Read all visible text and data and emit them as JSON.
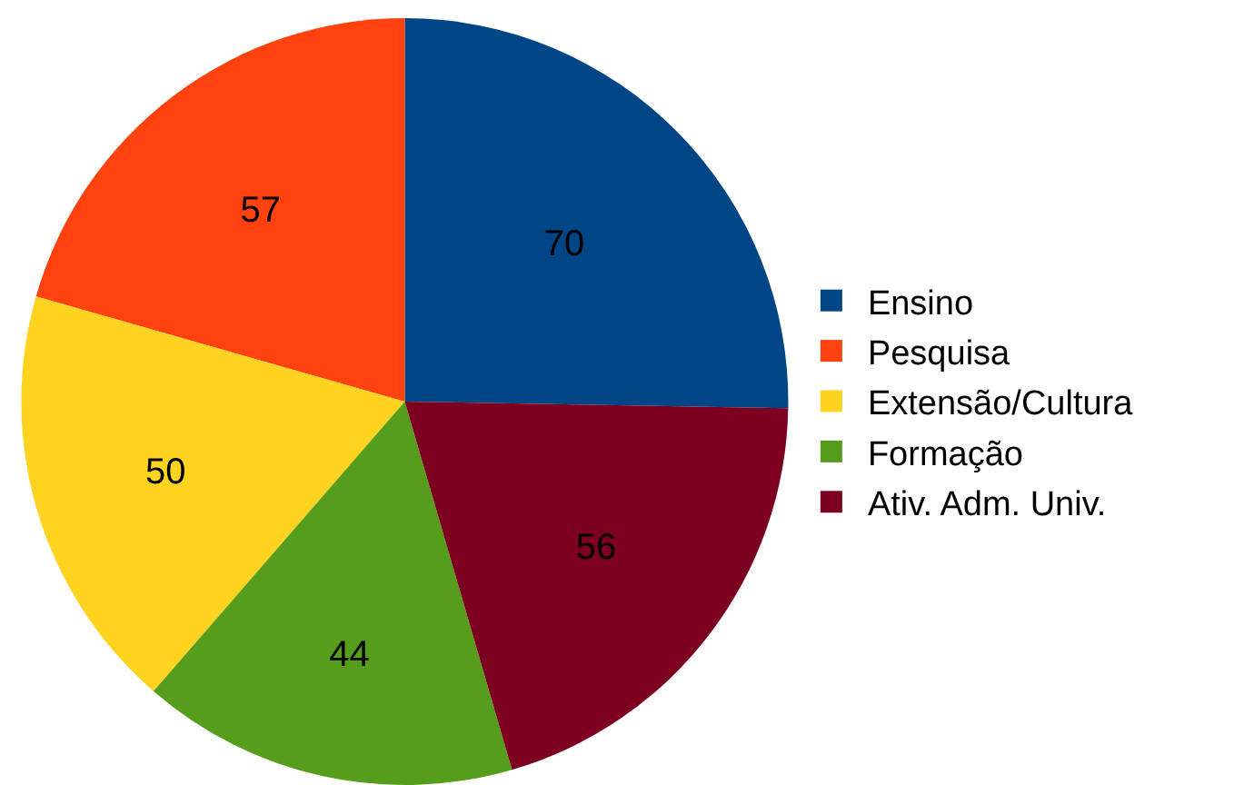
{
  "chart_data": {
    "type": "pie",
    "categories": [
      "Ensino",
      "Pesquisa",
      "Extensão/Cultura",
      "Formação",
      "Ativ. Adm. Univ."
    ],
    "values": [
      70,
      57,
      50,
      44,
      56
    ],
    "colors": [
      "#004586",
      "#ff420e",
      "#ffd320",
      "#579d1c",
      "#7e0021"
    ],
    "data_labels": true,
    "legend": "right"
  }
}
